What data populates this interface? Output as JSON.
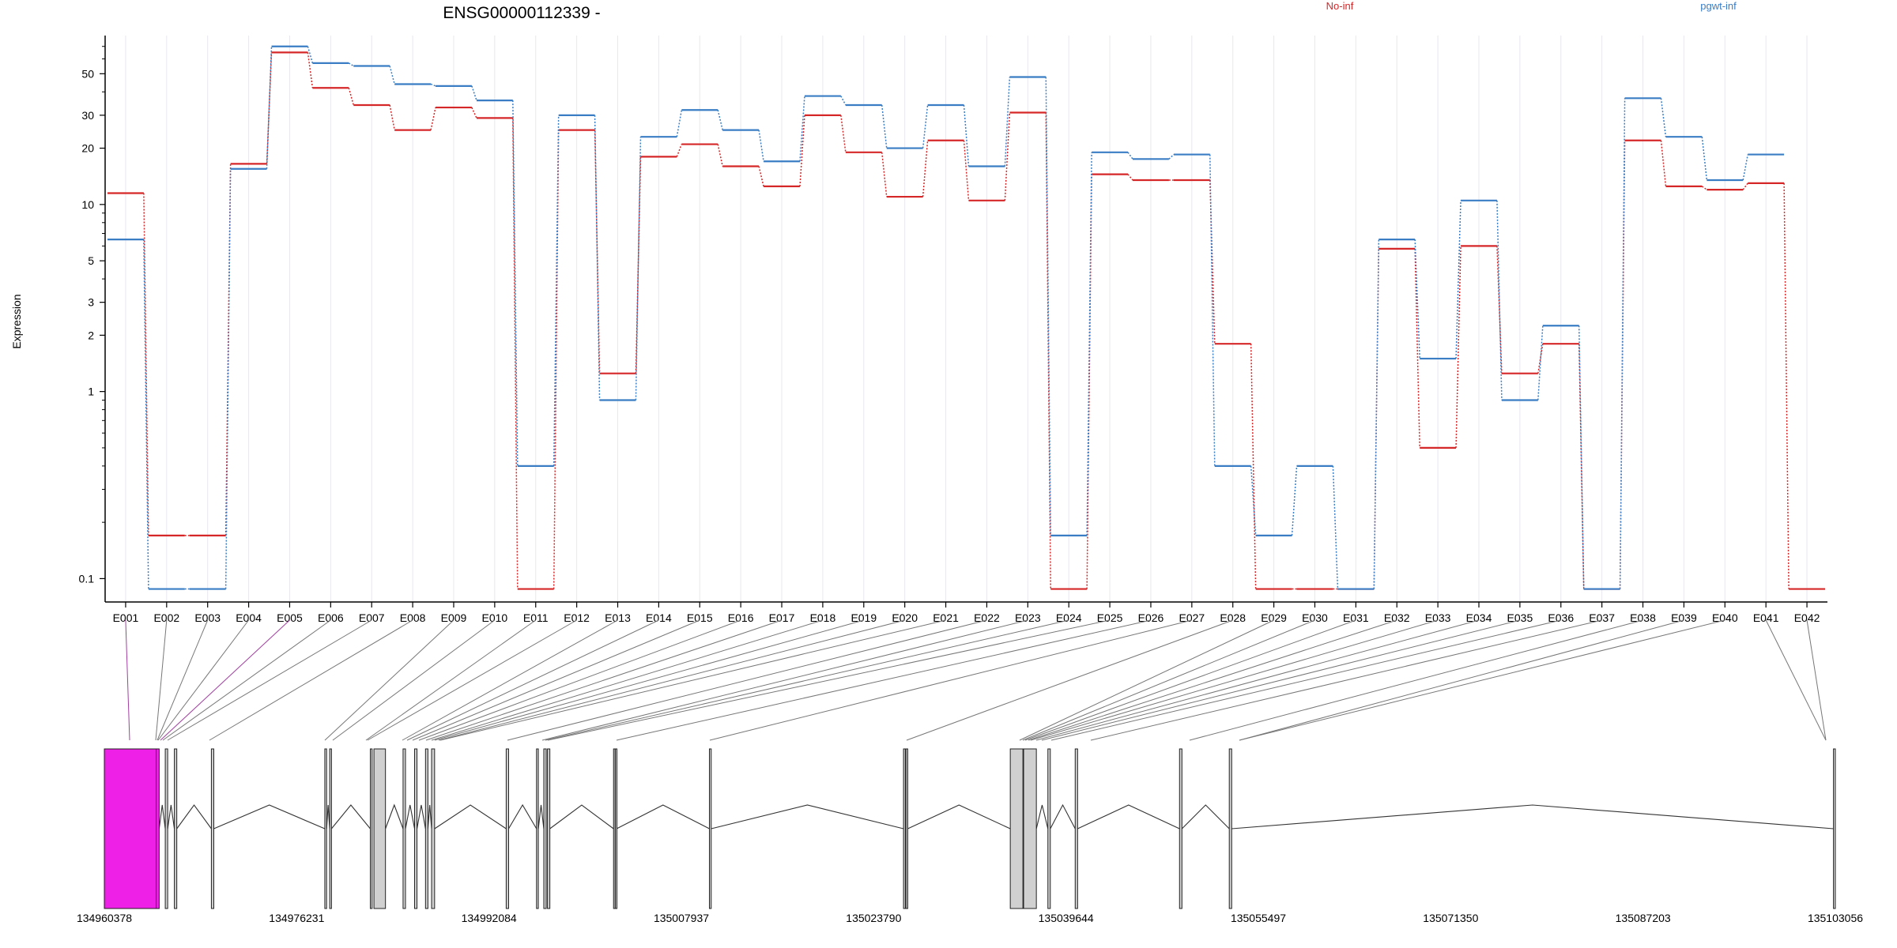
{
  "chart_data": {
    "type": "line",
    "title": "ENSG00000112339 -",
    "ylabel": "Expression",
    "xlabel": "",
    "scale": "log10",
    "ylim": [
      0.075,
      80
    ],
    "yticks": [
      0.1,
      1,
      2,
      3,
      5,
      10,
      20,
      30,
      50
    ],
    "ytick_labels": [
      "0.1",
      "1",
      "2",
      "3",
      "5",
      "10",
      "20",
      "30",
      "50"
    ],
    "categories": [
      "E001",
      "E002",
      "E003",
      "E004",
      "E005",
      "E006",
      "E007",
      "E008",
      "E009",
      "E010",
      "E011",
      "E012",
      "E013",
      "E014",
      "E015",
      "E016",
      "E017",
      "E018",
      "E019",
      "E020",
      "E021",
      "E022",
      "E023",
      "E024",
      "E025",
      "E026",
      "E027",
      "E028",
      "E029",
      "E030",
      "E031",
      "E032",
      "E033",
      "E034",
      "E035",
      "E036",
      "E037",
      "E038",
      "E039",
      "E040",
      "E041",
      "E042"
    ],
    "legend_position": "top",
    "grid": true,
    "series": [
      {
        "name": "No-inf",
        "color": "#d62728",
        "values": [
          11.5,
          0.17,
          0.17,
          16.5,
          65,
          42,
          34,
          25,
          33,
          29,
          0.088,
          25,
          1.25,
          18,
          21,
          16,
          12.5,
          30,
          19,
          11,
          22,
          10.5,
          31,
          0.088,
          14.5,
          13.5,
          13.5,
          1.8,
          0.088,
          0.088,
          0.088,
          5.8,
          0.5,
          6,
          1.25,
          1.8,
          0.088,
          22,
          12.5,
          12,
          13,
          0.088
        ]
      },
      {
        "name": "pgwt-inf",
        "color": "#3a7dc4",
        "values": [
          6.5,
          0.088,
          0.088,
          15.5,
          70,
          57,
          55,
          44,
          43,
          36,
          0.4,
          30,
          0.9,
          23,
          32,
          25,
          17,
          38,
          34,
          20,
          34,
          16,
          48,
          0.17,
          19,
          17.5,
          18.5,
          0.4,
          0.17,
          0.4,
          0.088,
          6.5,
          1.5,
          10.5,
          0.9,
          2.25,
          0.088,
          37,
          23,
          13.5,
          18.5,
          null
        ]
      }
    ],
    "gene_track": {
      "axis_labels": [
        "134960378",
        "134976231",
        "134992084",
        "135007937",
        "135023790",
        "135039644",
        "135055497",
        "135071350",
        "135087203",
        "135103056"
      ],
      "axis_values": [
        134960378,
        134976231,
        134992084,
        135007937,
        135023790,
        135039644,
        135055497,
        135071350,
        135087203,
        135103056
      ],
      "highlight_color": "#ee1fe6",
      "exon_fill": "#d0d0d0",
      "exons": [
        {
          "start": 134960378,
          "end": 134964650,
          "highlight": true
        },
        {
          "start": 134964650,
          "end": 134964900,
          "highlight": true
        },
        {
          "start": 134965400,
          "end": 134965600
        },
        {
          "start": 134966150,
          "end": 134966350
        },
        {
          "start": 134969200,
          "end": 134969400
        },
        {
          "start": 134978550,
          "end": 134978700
        },
        {
          "start": 134978950,
          "end": 134979100
        },
        {
          "start": 134982300,
          "end": 134982450
        },
        {
          "start": 134982600,
          "end": 134983550
        },
        {
          "start": 134985000,
          "end": 134985200
        },
        {
          "start": 134985950,
          "end": 134986150
        },
        {
          "start": 134986850,
          "end": 134987050
        },
        {
          "start": 134987350,
          "end": 134987600
        },
        {
          "start": 134993500,
          "end": 134993700
        },
        {
          "start": 134996000,
          "end": 134996150
        },
        {
          "start": 134996600,
          "end": 134996800
        },
        {
          "start": 134996900,
          "end": 134997100
        },
        {
          "start": 135002350,
          "end": 135002450
        },
        {
          "start": 135002500,
          "end": 135002600
        },
        {
          "start": 135010250,
          "end": 135010400
        },
        {
          "start": 135026250,
          "end": 135026400
        },
        {
          "start": 135026450,
          "end": 135026600
        },
        {
          "start": 135035050,
          "end": 135036100
        },
        {
          "start": 135036100,
          "end": 135036150
        },
        {
          "start": 135036150,
          "end": 135037200
        },
        {
          "start": 135038150,
          "end": 135038350
        },
        {
          "start": 135040400,
          "end": 135040600
        },
        {
          "start": 135049000,
          "end": 135049200
        },
        {
          "start": 135053100,
          "end": 135053300
        },
        {
          "start": 135102900,
          "end": 135103056
        }
      ]
    }
  }
}
